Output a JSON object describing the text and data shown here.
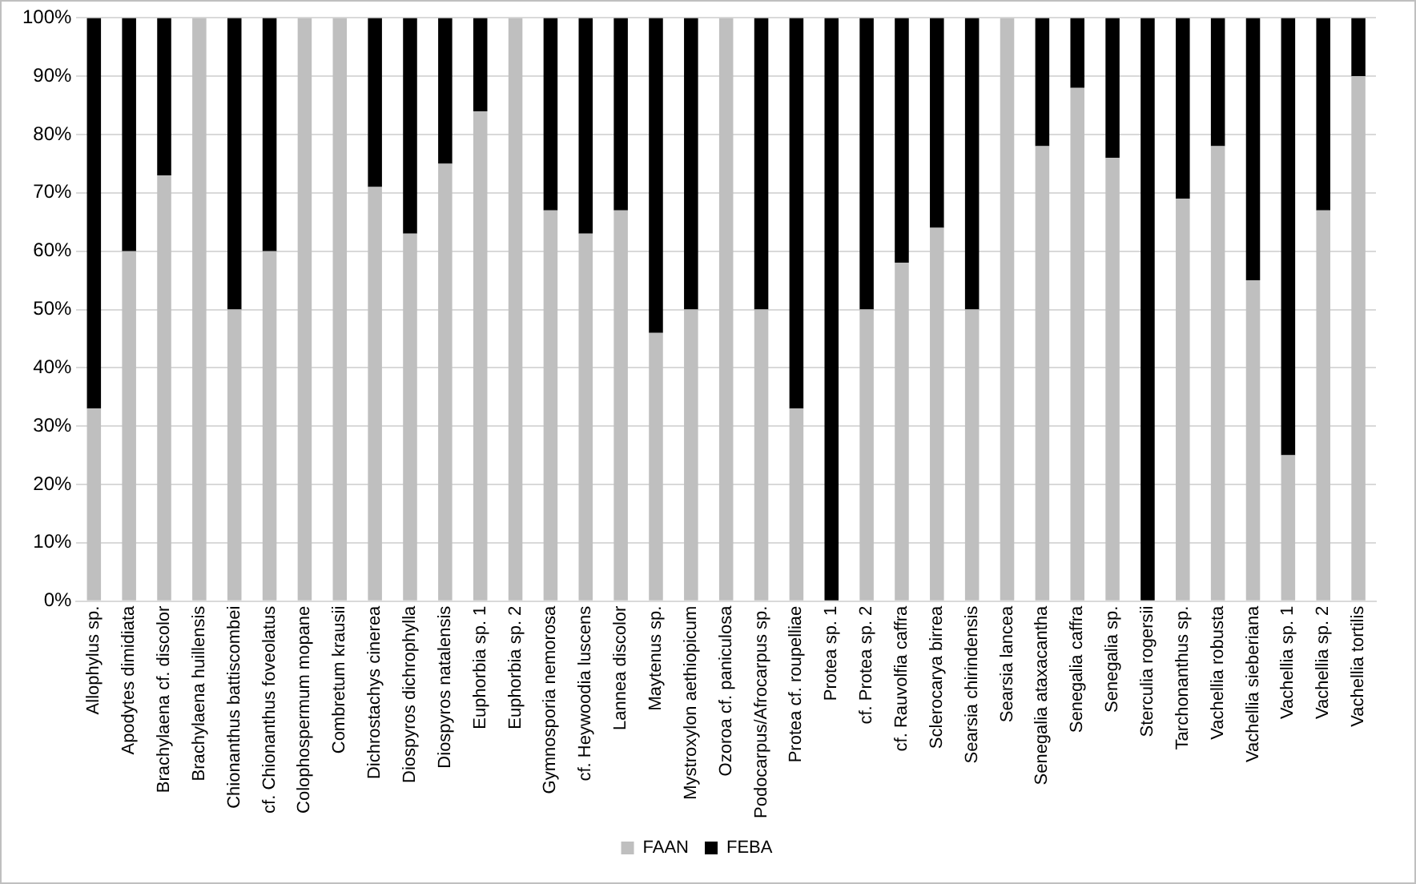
{
  "chart_data": {
    "type": "bar",
    "stacked": true,
    "categories": [
      "Allophylus sp.",
      "Apodytes dimidiata",
      "Brachylaena cf. discolor",
      "Brachylaena huillensis",
      "Chionanthus battiscombei",
      "cf. Chionanthus foveolatus",
      "Colophospermum mopane",
      "Combretum krausii",
      "Dichrostachys cinerea",
      "Diospyros dichrophylla",
      "Diospyros natalensis",
      "Euphorbia sp. 1",
      "Euphorbia sp. 2",
      "Gymnosporia nemorosa",
      "cf. Heywoodia luscens",
      "Lannea discolor",
      "Maytenus sp.",
      "Mystroxylon aethiopicum",
      "Ozoroa cf. paniculosa",
      "Podocarpus/Afrocarpus sp.",
      "Protea cf. roupelliae",
      "Protea sp. 1",
      "cf. Protea sp. 2",
      "cf. Rauvolfia caffra",
      "Sclerocarya birrea",
      "Searsia chirindensis",
      "Searsia lancea",
      "Senegalia ataxacantha",
      "Senegalia caffra",
      "Senegalia sp.",
      "Sterculia rogersii",
      "Tarchonanthus sp.",
      "Vachellia robusta",
      "Vachellia sieberiana",
      "Vachellia sp. 1",
      "Vachellia sp. 2",
      "Vachellia tortilis"
    ],
    "series": [
      {
        "name": "FAAN",
        "color": "#bfbfbf",
        "values": [
          33,
          60,
          73,
          100,
          50,
          60,
          100,
          100,
          71,
          63,
          75,
          84,
          100,
          67,
          63,
          67,
          46,
          50,
          100,
          50,
          33,
          0,
          50,
          58,
          64,
          50,
          100,
          78,
          88,
          76,
          0,
          69,
          78,
          55,
          25,
          67,
          90
        ]
      },
      {
        "name": "FEBA",
        "color": "#000000",
        "values": [
          67,
          40,
          27,
          0,
          50,
          40,
          0,
          0,
          29,
          37,
          25,
          16,
          0,
          33,
          37,
          33,
          54,
          50,
          0,
          50,
          67,
          100,
          50,
          42,
          36,
          50,
          0,
          22,
          12,
          24,
          100,
          31,
          22,
          45,
          75,
          33,
          10
        ]
      }
    ],
    "ylim": [
      0,
      100
    ],
    "yticks": [
      {
        "value": 0,
        "label": "0%"
      },
      {
        "value": 10,
        "label": "10%"
      },
      {
        "value": 20,
        "label": "20%"
      },
      {
        "value": 30,
        "label": "30%"
      },
      {
        "value": 40,
        "label": "40%"
      },
      {
        "value": 50,
        "label": "50%"
      },
      {
        "value": 60,
        "label": "60%"
      },
      {
        "value": 70,
        "label": "70%"
      },
      {
        "value": 80,
        "label": "80%"
      },
      {
        "value": 90,
        "label": "90%"
      },
      {
        "value": 100,
        "label": "100%"
      }
    ],
    "grid": "y",
    "legend": "bottom"
  }
}
